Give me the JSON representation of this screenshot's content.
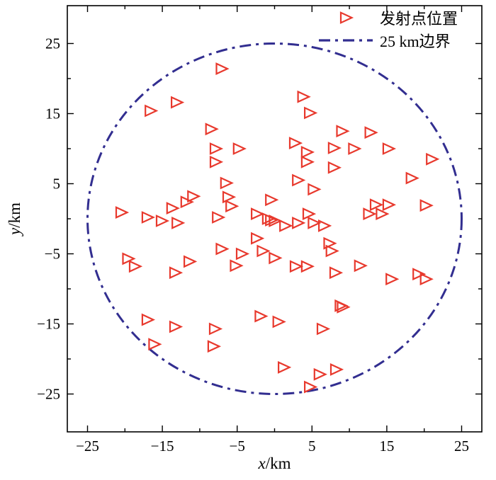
{
  "figure": {
    "background": "#ffffff"
  },
  "legend": {
    "position": "top-right",
    "items": [
      {
        "label": "发射点位置",
        "marker": "open-triangle-right",
        "color": "#e8392d"
      },
      {
        "label": "25 km边界",
        "marker": "dash-dot-line",
        "color": "#322e90"
      }
    ]
  },
  "chart_data": {
    "type": "scatter",
    "title": "",
    "xlabel": "x/km",
    "ylabel": "y/km",
    "xlim": [
      -27.7,
      27.7
    ],
    "ylim": [
      -30.4,
      30.4
    ],
    "xticks": [
      -25,
      -15,
      -5,
      5,
      15,
      25
    ],
    "yticks": [
      -25,
      -15,
      -5,
      5,
      15,
      25
    ],
    "minor_tick_step": 5,
    "grid": false,
    "legend_position": "top-right",
    "series": [
      {
        "name": "发射点位置",
        "marker": "open-triangle-right",
        "color": "#e8392d",
        "points": [
          [
            -7.2,
            21.4
          ],
          [
            3.7,
            17.4
          ],
          [
            -16.7,
            15.4
          ],
          [
            -13.2,
            16.6
          ],
          [
            4.6,
            15.1
          ],
          [
            -8.6,
            12.8
          ],
          [
            12.7,
            12.3
          ],
          [
            8.9,
            12.5
          ],
          [
            -8.0,
            10.0
          ],
          [
            -4.9,
            10.0
          ],
          [
            2.6,
            10.8
          ],
          [
            4.2,
            9.5
          ],
          [
            7.8,
            10.1
          ],
          [
            10.5,
            10.0
          ],
          [
            15.1,
            10.0
          ],
          [
            -8.0,
            8.1
          ],
          [
            4.2,
            8.1
          ],
          [
            7.8,
            7.3
          ],
          [
            20.9,
            8.5
          ],
          [
            -6.6,
            5.1
          ],
          [
            3.0,
            5.5
          ],
          [
            5.1,
            4.2
          ],
          [
            18.2,
            5.8
          ],
          [
            -6.3,
            3.1
          ],
          [
            -11.0,
            3.2
          ],
          [
            -5.9,
            1.8
          ],
          [
            -0.6,
            2.7
          ],
          [
            13.4,
            2.0
          ],
          [
            15.1,
            2.0
          ],
          [
            20.1,
            1.9
          ],
          [
            -20.6,
            0.9
          ],
          [
            -17.1,
            0.2
          ],
          [
            -13.8,
            1.5
          ],
          [
            -11.9,
            2.4
          ],
          [
            -15.2,
            -0.3
          ],
          [
            -13.1,
            -0.6
          ],
          [
            -7.7,
            0.2
          ],
          [
            -2.5,
            0.7
          ],
          [
            -1.0,
            0.0
          ],
          [
            -0.6,
            -0.2
          ],
          [
            -0.1,
            -0.3
          ],
          [
            1.3,
            -1.0
          ],
          [
            3.0,
            -0.6
          ],
          [
            4.4,
            0.7
          ],
          [
            5.1,
            -0.6
          ],
          [
            6.5,
            -1.0
          ],
          [
            12.5,
            0.7
          ],
          [
            14.2,
            0.7
          ],
          [
            -2.5,
            -2.8
          ],
          [
            -7.2,
            -4.3
          ],
          [
            -4.5,
            -5.0
          ],
          [
            -1.7,
            -4.6
          ],
          [
            -0.1,
            -5.6
          ],
          [
            2.7,
            -6.8
          ],
          [
            7.2,
            -3.5
          ],
          [
            7.5,
            -4.6
          ],
          [
            -19.7,
            -5.7
          ],
          [
            -18.8,
            -6.8
          ],
          [
            -11.5,
            -6.1
          ],
          [
            -13.4,
            -7.7
          ],
          [
            -5.3,
            -6.7
          ],
          [
            4.2,
            -6.8
          ],
          [
            8.0,
            -7.7
          ],
          [
            11.3,
            -6.7
          ],
          [
            15.5,
            -8.6
          ],
          [
            19.1,
            -7.9
          ],
          [
            20.1,
            -8.6
          ],
          [
            8.7,
            -12.4
          ],
          [
            9.0,
            -12.6
          ],
          [
            -2.0,
            -13.9
          ],
          [
            0.4,
            -14.7
          ],
          [
            -17.1,
            -14.4
          ],
          [
            -13.4,
            -15.4
          ],
          [
            -8.1,
            -15.7
          ],
          [
            6.3,
            -15.7
          ],
          [
            -16.2,
            -17.9
          ],
          [
            -8.3,
            -18.2
          ],
          [
            1.1,
            -21.2
          ],
          [
            5.9,
            -22.2
          ],
          [
            8.1,
            -21.5
          ],
          [
            4.6,
            -24.0
          ]
        ]
      }
    ],
    "boundary": {
      "name": "25 km边界",
      "shape": "circle",
      "center": [
        0,
        0
      ],
      "radius": 25,
      "line_style": "dash-dot",
      "color": "#322e90",
      "line_width": 3
    }
  }
}
